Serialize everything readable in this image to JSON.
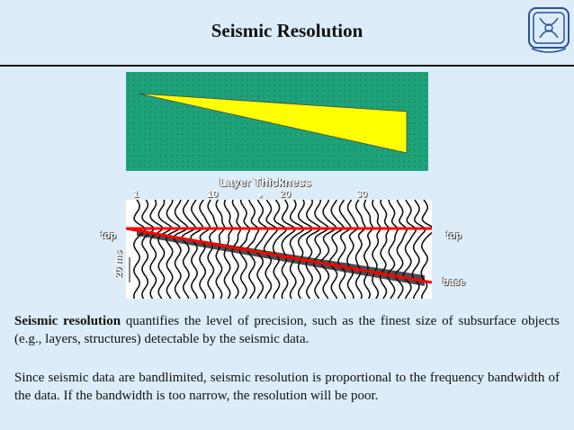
{
  "slide": {
    "title": "Seismic Resolution"
  },
  "figure": {
    "axis_title": "Layer Thickness",
    "ticks": [
      "1",
      "10",
      "20",
      "30"
    ],
    "star": "*",
    "labels": {
      "top_left": "top",
      "top_right": "top",
      "base": "base",
      "scale": "20 ms"
    },
    "colors": {
      "background": "#1fa27a",
      "wedge": "#ffff00",
      "horizon": "#ff0000"
    }
  },
  "text": {
    "p1_bold": "Seismic resolution",
    "p1_rest": " quantifies the level of precision, such as the finest size of subsurface objects (e.g., layers, structures) detectable by the seismic data.",
    "p2": "Since seismic data are bandlimited, seismic resolution is proportional to the frequency bandwidth of the data. If the bandwidth is too narrow, the resolution will be poor."
  }
}
